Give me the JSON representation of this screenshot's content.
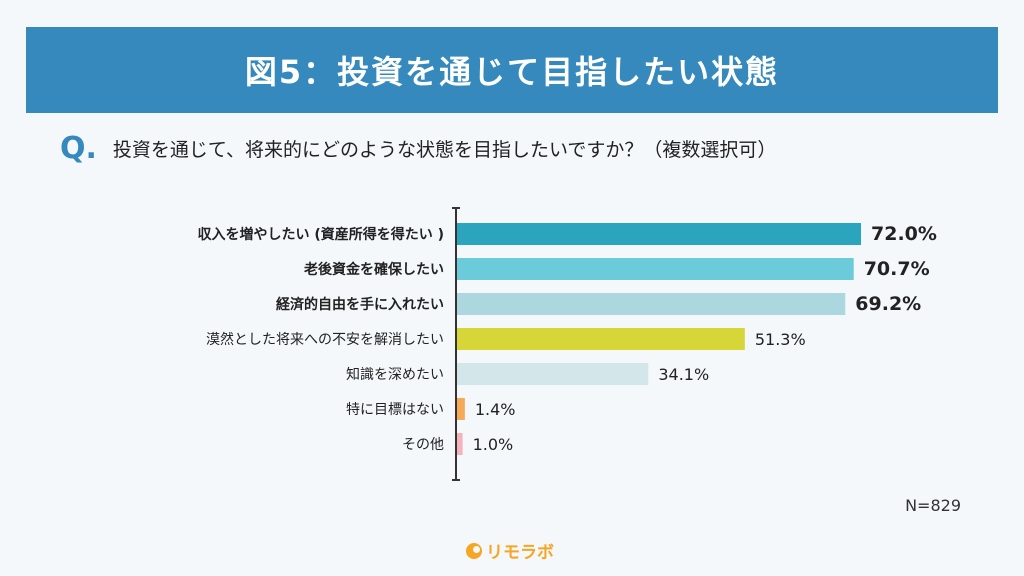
{
  "header": {
    "title": "図5：投資を通じて目指したい状態"
  },
  "question": {
    "mark": "Q",
    "text": "投資を通じて、将来的にどのような状態を目指したいですか？（複数選択可）"
  },
  "chart_data": {
    "type": "bar",
    "orientation": "horizontal",
    "categories": [
      "収入を増やしたい (資産所得を得たい )",
      "老後資金を確保したい",
      "経済的自由を手に入れたい",
      "漠然とした将来への不安を解消したい",
      "知識を深めたい",
      "特に目標はない",
      "その他"
    ],
    "values": [
      72.0,
      70.7,
      69.2,
      51.3,
      34.1,
      1.4,
      1.0
    ],
    "value_labels": [
      "72.0%",
      "70.7%",
      "69.2%",
      "51.3%",
      "34.1%",
      "1.4%",
      "1.0%"
    ],
    "colors": [
      "#2aa5bd",
      "#6ccbdb",
      "#acd7de",
      "#d7d638",
      "#d3e6ea",
      "#f5aa58",
      "#f4b3bd"
    ],
    "bold": [
      true,
      true,
      true,
      false,
      false,
      false,
      false
    ],
    "xlim": [
      0,
      100
    ],
    "grid": false
  },
  "footer": {
    "sample": "N=829",
    "logo_text": "リモラボ"
  }
}
